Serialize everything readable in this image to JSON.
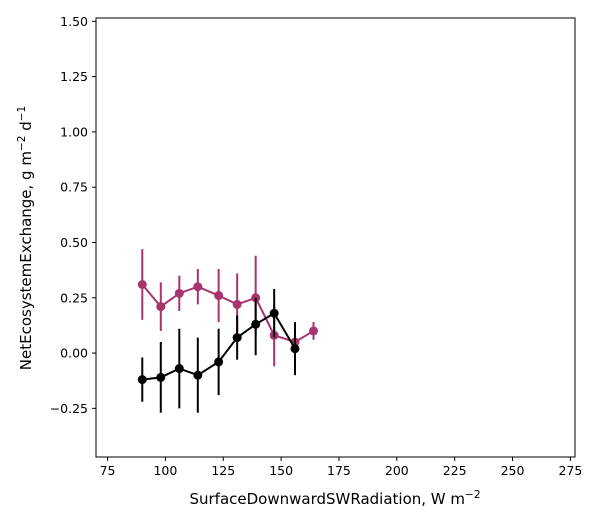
{
  "chart_data": {
    "type": "line",
    "xlabel": "SurfaceDownwardSWRadiation,  W m",
    "xlabel_sup": "−2",
    "ylabel_main": "NetEcosystemExchange,  g m",
    "ylabel_sup1": "−2",
    "ylabel_mid": " d",
    "ylabel_sup2": "−1",
    "xlim": [
      70,
      277
    ],
    "ylim": [
      -0.47,
      1.515
    ],
    "grid": false,
    "x_ticks": [
      {
        "value": 75,
        "label": "75"
      },
      {
        "value": 100,
        "label": "100"
      },
      {
        "value": 125,
        "label": "125"
      },
      {
        "value": 150,
        "label": "150"
      },
      {
        "value": 175,
        "label": "175"
      },
      {
        "value": 200,
        "label": "200"
      },
      {
        "value": 225,
        "label": "225"
      },
      {
        "value": 250,
        "label": "250"
      },
      {
        "value": 275,
        "label": "275"
      }
    ],
    "y_ticks": [
      {
        "value": -0.25,
        "label": "−0.25"
      },
      {
        "value": 0.0,
        "label": "0.00"
      },
      {
        "value": 0.25,
        "label": "0.25"
      },
      {
        "value": 0.5,
        "label": "0.50"
      },
      {
        "value": 0.75,
        "label": "0.75"
      },
      {
        "value": 1.0,
        "label": "1.00"
      },
      {
        "value": 1.25,
        "label": "1.25"
      },
      {
        "value": 1.5,
        "label": "1.50"
      }
    ],
    "series": [
      {
        "color": "#a8336e",
        "x": [
          90,
          98,
          106,
          114,
          123,
          131,
          139,
          147,
          156,
          164
        ],
        "y": [
          0.31,
          0.21,
          0.27,
          0.3,
          0.26,
          0.22,
          0.25,
          0.08,
          0.05,
          0.1
        ],
        "err_low": [
          0.15,
          0.1,
          0.19,
          0.22,
          0.14,
          0.09,
          0.08,
          -0.06,
          0.04,
          0.06
        ],
        "err_high": [
          0.47,
          0.32,
          0.35,
          0.38,
          0.38,
          0.36,
          0.44,
          0.22,
          0.06,
          0.14
        ]
      },
      {
        "color": "#000000",
        "x": [
          90,
          98,
          106,
          114,
          123,
          131,
          139,
          147,
          156
        ],
        "y": [
          -0.12,
          -0.11,
          -0.07,
          -0.1,
          -0.04,
          0.07,
          0.13,
          0.18,
          0.02
        ],
        "err_low": [
          -0.22,
          -0.27,
          -0.25,
          -0.27,
          -0.19,
          -0.03,
          -0.01,
          0.07,
          -0.1
        ],
        "err_high": [
          -0.02,
          0.05,
          0.11,
          0.07,
          0.11,
          0.17,
          0.25,
          0.29,
          0.14
        ]
      }
    ]
  }
}
